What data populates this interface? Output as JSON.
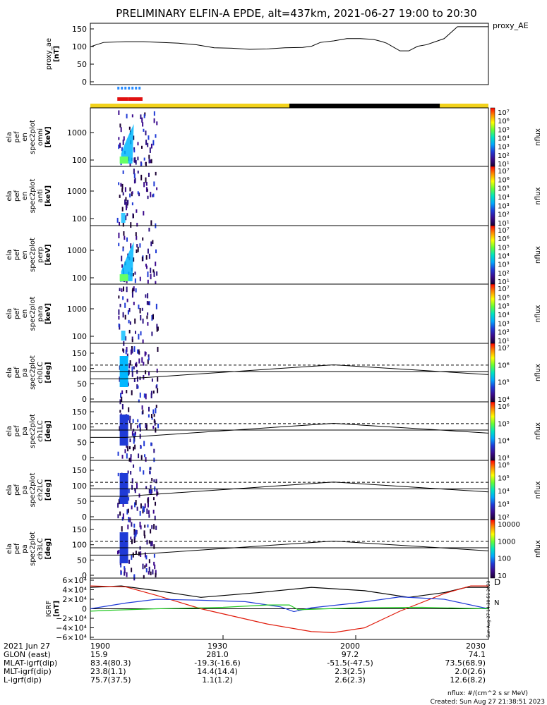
{
  "title": "PRELIMINARY ELFIN-A EPDE, alt=437km, 2021-06-27 19:00 to 20:30",
  "colors": {
    "sunlit": "#f2d21b",
    "eclipse": "#000000",
    "fgm_blue": "#2a8dff",
    "fgm_red": "#e01010",
    "bx": "#1f3ad6",
    "by": "#1fc81f",
    "bz": "#e01a0a",
    "bt": "#000000"
  },
  "panels": [
    {
      "id": "proxy_ae",
      "ylabel": [
        "proxy_ae",
        "[nT]"
      ],
      "right_label": "proxy_AE",
      "yticks": [
        "150",
        "100",
        "50",
        "0"
      ]
    },
    {
      "id": "omni",
      "ylabel": [
        "ela",
        "pef",
        "en",
        "spec2plot",
        "omni",
        "[keV]"
      ],
      "yticks": [
        "1000",
        "100"
      ],
      "cb_label": "nflux",
      "cb_ticks": [
        "10⁷",
        "10⁶",
        "10⁵",
        "10⁴",
        "10³",
        "10²",
        "10¹"
      ]
    },
    {
      "id": "anti",
      "ylabel": [
        "ela",
        "pef",
        "en",
        "spec2plot",
        "anti",
        "[keV]"
      ],
      "yticks": [
        "1000",
        "100"
      ],
      "cb_label": "nflux",
      "cb_ticks": [
        "10⁷",
        "10⁶",
        "10⁵",
        "10⁴",
        "10³",
        "10²",
        "10¹"
      ]
    },
    {
      "id": "perp",
      "ylabel": [
        "ela",
        "pef",
        "en",
        "spec2plot",
        "perp",
        "[keV]"
      ],
      "yticks": [
        "1000",
        "100"
      ],
      "cb_label": "nflux",
      "cb_ticks": [
        "10⁷",
        "10⁶",
        "10⁵",
        "10⁴",
        "10³",
        "10²",
        "10¹"
      ]
    },
    {
      "id": "para",
      "ylabel": [
        "ela",
        "pef",
        "en",
        "spec2plot",
        "para",
        "[keV]"
      ],
      "yticks": [
        "1000",
        "100"
      ],
      "cb_label": "nflux",
      "cb_ticks": [
        "10⁷",
        "10⁶",
        "10⁵",
        "10⁴",
        "10³",
        "10²",
        "10¹"
      ]
    },
    {
      "id": "ch0LC",
      "ylabel": [
        "ela",
        "pef",
        "pa",
        "spec2plot",
        "ch0LC",
        "[deg]"
      ],
      "yticks": [
        "150",
        "100",
        "50",
        "0"
      ],
      "cb_label": "nflux",
      "cb_ticks": [
        "10⁷",
        "10⁶",
        "10⁵",
        "10⁴"
      ]
    },
    {
      "id": "ch1LC",
      "ylabel": [
        "ela",
        "pef",
        "pa",
        "spec2plot",
        "ch1LC",
        "[deg]"
      ],
      "yticks": [
        "150",
        "100",
        "50",
        "0"
      ],
      "cb_label": "nflux",
      "cb_ticks": [
        "10⁶",
        "10⁵",
        "10⁴",
        "10³"
      ]
    },
    {
      "id": "ch2LC",
      "ylabel": [
        "ela",
        "pef",
        "pa",
        "spec2plot",
        "ch2LC",
        "[deg]"
      ],
      "yticks": [
        "150",
        "100",
        "50",
        "0"
      ],
      "cb_label": "nflux",
      "cb_ticks": [
        "10⁶",
        "10⁵",
        "10⁴",
        "10³",
        "10²"
      ]
    },
    {
      "id": "ch3LC",
      "ylabel": [
        "ela",
        "pef",
        "pa",
        "spec2plot",
        "ch3LC",
        "[deg]"
      ],
      "yticks": [
        "150",
        "100",
        "50",
        "0"
      ],
      "cb_label": "nflux",
      "cb_ticks": [
        "10000",
        "1000",
        "100",
        "10"
      ]
    },
    {
      "id": "igrf",
      "ylabel": [
        "IGRF",
        "[nT]"
      ],
      "yticks": [
        "6×10⁴",
        "4×10⁴",
        "2×10⁴",
        "0",
        "−2×10⁴",
        "−4×10⁴",
        "−6×10⁴"
      ],
      "right_labels": [
        "D",
        "N"
      ]
    }
  ],
  "chart_data": {
    "type": "line",
    "title": "PRELIMINARY ELFIN-A EPDE, alt=437km, 2021-06-27 19:00 to 20:30",
    "x_range_min": [
      0,
      90
    ],
    "x_tick_labels": [
      "1900",
      "1930",
      "2000",
      "2030"
    ],
    "proxy_ae": {
      "ylim": [
        0,
        160
      ],
      "x_min": [
        0,
        3,
        8,
        12,
        20,
        24,
        28,
        32,
        36,
        40,
        44,
        48,
        50,
        52,
        55,
        58,
        61,
        64,
        66,
        67,
        70,
        72,
        74,
        76,
        78,
        80,
        83,
        85,
        90
      ],
      "values": [
        99,
        110,
        112,
        112,
        108,
        104,
        96,
        95,
        92,
        93,
        96,
        97,
        100,
        110,
        114,
        120,
        120,
        118,
        112,
        108,
        88,
        88,
        100,
        104,
        112,
        120,
        151,
        151,
        151
      ]
    },
    "pa_lines": {
      "dashed": 111,
      "solid": 90,
      "loss_cone_lower_deg": {
        "x_min": [
          0,
          8,
          55,
          90
        ],
        "values": [
          66,
          66,
          112,
          80
        ]
      }
    },
    "igrf": {
      "ylim": [
        -60000,
        60000
      ],
      "series": [
        {
          "name": "bt",
          "x_min": [
            0,
            7,
            15,
            25,
            38,
            50,
            62,
            72,
            80,
            85,
            90
          ],
          "values": [
            45000,
            48000,
            38000,
            24000,
            34000,
            45000,
            38000,
            24000,
            34000,
            45000,
            45000
          ]
        },
        {
          "name": "bz",
          "x_min": [
            0,
            8,
            15,
            25,
            40,
            50,
            55,
            62,
            70,
            80,
            86,
            90
          ],
          "values": [
            48000,
            46000,
            28000,
            0,
            -32000,
            -48000,
            -50000,
            -40000,
            -5000,
            32000,
            48000,
            48000
          ]
        },
        {
          "name": "bx",
          "x_min": [
            0,
            8,
            15,
            25,
            35,
            43,
            46,
            50,
            60,
            70,
            80,
            90
          ],
          "values": [
            0,
            12000,
            20000,
            18000,
            15000,
            4000,
            -6000,
            2000,
            12000,
            25000,
            20000,
            0
          ]
        },
        {
          "name": "by",
          "x_min": [
            0,
            5,
            15,
            30,
            40,
            45,
            47,
            60,
            75,
            90
          ],
          "values": [
            -5000,
            -3000,
            0,
            3000,
            8000,
            8000,
            -2000,
            2000,
            3000,
            0
          ]
        }
      ]
    },
    "spectrogram_burst": {
      "x_min_range": [
        6,
        12
      ],
      "note": "science collection interval"
    },
    "fgm_bars": {
      "blue_x_min": [
        6.1,
        11.5
      ],
      "red_x_min": [
        6.1,
        11.8
      ]
    },
    "eclipse_x_min": [
      45,
      79
    ]
  },
  "footer": {
    "rows": [
      {
        "label": "2021 Jun 27",
        "values": [
          "1900",
          "1930",
          "2000",
          "2030"
        ]
      },
      {
        "label": "GLON (east)",
        "values": [
          "15.9",
          "281.0",
          "97.2",
          "74.1"
        ]
      },
      {
        "label": "MLAT-igrf(dip)",
        "values": [
          "83.4(80.3)",
          "-19.3(-16.6)",
          "-51.5(-47.5)",
          "73.5(68.9)"
        ]
      },
      {
        "label": "MLT-igrf(dip)",
        "values": [
          "23.8(1.1)",
          "14.4(14.4)",
          "2.3(2.5)",
          "2.0(2.6)"
        ]
      },
      {
        "label": "L-igrf(dip)",
        "values": [
          "75.7(37.5)",
          "1.1(1.2)",
          "2.6(2.3)",
          "12.6(8.2)"
        ]
      }
    ],
    "units_note": "nflux: #/(cm^2 s sr MeV)",
    "created": "Created: Sun Aug 27 21:38:51 2023",
    "side_stamp": "Sun Aug 27 14:38:51 2023"
  }
}
